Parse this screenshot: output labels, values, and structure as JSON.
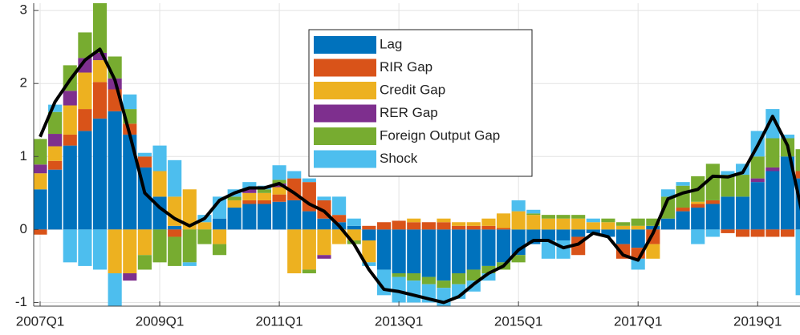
{
  "chart_data": {
    "type": "bar",
    "categories": [
      "2007Q1",
      null,
      null,
      null,
      null,
      null,
      null,
      null,
      "2009Q1",
      null,
      null,
      null,
      null,
      null,
      null,
      null,
      "2011Q1",
      null,
      null,
      null,
      null,
      null,
      null,
      null,
      "2013Q1",
      null,
      null,
      null,
      null,
      null,
      null,
      null,
      "2015Q1",
      null,
      null,
      null,
      null,
      null,
      null,
      null,
      "2017Q1",
      null,
      null,
      null,
      null,
      null,
      null,
      null,
      "2019Q1",
      null,
      null,
      null
    ],
    "series": [
      {
        "name": "Lag",
        "color": "#0072BD",
        "values": [
          0.55,
          0.82,
          1.15,
          1.35,
          1.52,
          1.62,
          1.3,
          0.85,
          0.45,
          0.05,
          0,
          0,
          0.15,
          0.3,
          0.35,
          0.35,
          0.38,
          0.4,
          0.25,
          0.15,
          0.1,
          0.05,
          -0.15,
          -0.55,
          -0.6,
          -0.6,
          -0.65,
          -0.7,
          -0.6,
          -0.55,
          -0.5,
          -0.45,
          -0.35,
          -0.2,
          -0.15,
          -0.15,
          -0.1,
          -0.05,
          -0.1,
          -0.2,
          -0.25,
          0.05,
          0.15,
          0.25,
          0.3,
          0.35,
          0.45,
          0.45,
          0.65,
          0.8,
          1.0,
          0.7
        ]
      },
      {
        "name": "RIR Gap",
        "color": "#D95319",
        "values": [
          -0.07,
          0.12,
          0.15,
          0.3,
          0.5,
          0.3,
          0.15,
          0.15,
          0,
          -0.1,
          0,
          0,
          0,
          0,
          0.05,
          0.05,
          0.1,
          0.3,
          0.4,
          0.25,
          0.1,
          0,
          0.05,
          0.1,
          0.12,
          0.1,
          0.1,
          0.1,
          0.05,
          0.05,
          0.05,
          0.02,
          0,
          0,
          0,
          0,
          -0.25,
          0,
          0,
          -0.2,
          -0.15,
          -0.2,
          0,
          0.05,
          0.05,
          0.05,
          -0.05,
          -0.1,
          -0.1,
          -0.1,
          -0.1,
          0.1
        ]
      },
      {
        "name": "Credit Gap",
        "color": "#EDB120",
        "values": [
          0.22,
          0.2,
          0.4,
          0.5,
          0.3,
          -0.6,
          -0.6,
          -0.35,
          0.35,
          0.4,
          0.55,
          0.1,
          -0.2,
          0.1,
          0.1,
          0.1,
          0.1,
          -0.6,
          -0.55,
          -0.35,
          -0.2,
          -0.15,
          -0.3,
          0,
          0,
          0.05,
          0,
          0.05,
          0.05,
          0.05,
          0.1,
          0.2,
          0.25,
          0.2,
          0.15,
          0.15,
          0.15,
          0.1,
          0.1,
          0.05,
          0.05,
          -0.2,
          0,
          0,
          0.03,
          0,
          0,
          0,
          0,
          0,
          0,
          0
        ]
      },
      {
        "name": "RER Gap",
        "color": "#7E2F8E",
        "values": [
          0.12,
          0.17,
          0.2,
          0.2,
          0.1,
          0.15,
          -0.1,
          0,
          0,
          0,
          0,
          0,
          0,
          0,
          0.05,
          0,
          0.05,
          0,
          0,
          -0.05,
          0,
          0,
          0,
          0,
          0,
          0,
          0,
          0,
          0,
          0,
          0,
          0,
          0,
          0,
          0,
          0,
          0,
          0,
          0,
          0,
          0,
          0,
          0,
          0,
          0,
          0,
          0,
          0,
          0.05,
          0.05,
          0,
          0
        ]
      },
      {
        "name": "Foreign Output Gap",
        "color": "#77AC30",
        "values": [
          0.35,
          0.3,
          0.35,
          0.35,
          0.7,
          0.3,
          0.2,
          -0.2,
          -0.45,
          -0.4,
          -0.45,
          -0.2,
          -0.15,
          0.05,
          0,
          0.05,
          0.05,
          0,
          -0.05,
          0,
          0,
          -0.05,
          0,
          0,
          -0.05,
          -0.1,
          -0.1,
          -0.1,
          -0.15,
          -0.15,
          -0.1,
          -0.1,
          -0.1,
          0.02,
          0.05,
          0.05,
          0.05,
          0,
          0.05,
          0.05,
          0.1,
          0.1,
          0.3,
          0.3,
          0.35,
          0.5,
          0.3,
          0.3,
          0.3,
          0.4,
          0.25,
          0.3
        ]
      },
      {
        "name": "Shock",
        "color": "#4DBEEE",
        "values": [
          0,
          0.1,
          -0.45,
          -0.5,
          -0.55,
          -0.45,
          0.2,
          0.05,
          0.35,
          0.5,
          -0.05,
          0.1,
          0.3,
          0.1,
          0.1,
          0.05,
          0.2,
          0.1,
          0.05,
          0.05,
          0.25,
          0.1,
          -0.05,
          -0.35,
          -0.35,
          -0.3,
          -0.25,
          -0.25,
          -0.2,
          -0.15,
          -0.1,
          0,
          0.15,
          0.05,
          -0.25,
          -0.25,
          0,
          0.05,
          0,
          0,
          -0.15,
          0,
          0.1,
          0.05,
          -0.2,
          -0.1,
          0.05,
          0.15,
          0.35,
          0.4,
          0.05,
          -0.9
        ]
      }
    ],
    "line": {
      "color": "#000000",
      "values": [
        1.27,
        1.75,
        2.05,
        2.32,
        2.47,
        2.05,
        1.3,
        0.5,
        0.3,
        0.15,
        0.05,
        0.15,
        0.4,
        0.5,
        0.57,
        0.57,
        0.63,
        0.5,
        0.35,
        0.25,
        0.05,
        -0.2,
        -0.55,
        -0.82,
        -0.85,
        -0.9,
        -0.95,
        -1.0,
        -0.92,
        -0.75,
        -0.6,
        -0.5,
        -0.28,
        -0.15,
        -0.15,
        -0.25,
        -0.2,
        -0.05,
        -0.1,
        -0.35,
        -0.42,
        -0.05,
        0.42,
        0.5,
        0.55,
        0.73,
        0.72,
        0.78,
        1.15,
        1.55,
        1.15,
        0.2
      ]
    },
    "ylim": [
      -1.05,
      3.1
    ],
    "yticks": [
      -1,
      0,
      1,
      2,
      3
    ],
    "grid": true,
    "legend": "top"
  }
}
